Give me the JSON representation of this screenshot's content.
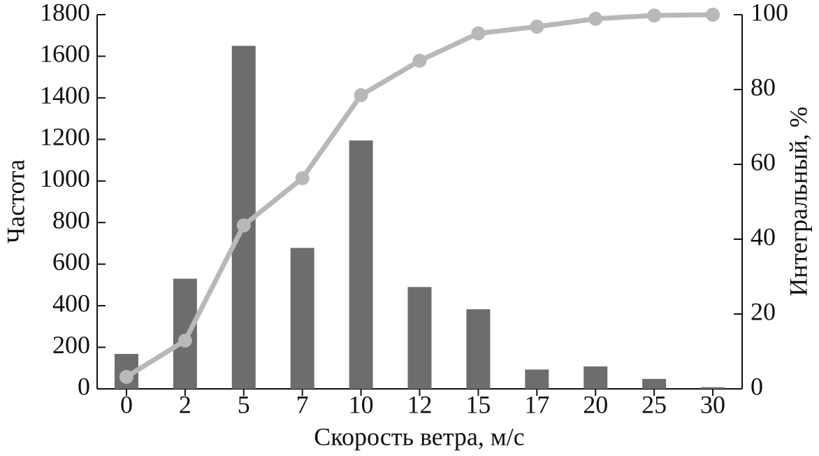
{
  "chart_data": {
    "type": "bar",
    "x_label": "Скорость ветра, м/с",
    "y_label": "Частота",
    "y2_label": "Интегральный, %",
    "categories": [
      "0",
      "2",
      "5",
      "7",
      "10",
      "12",
      "15",
      "17",
      "20",
      "25",
      "30"
    ],
    "series": [
      {
        "name": "Частота",
        "type": "bar",
        "axis": "y",
        "color": "#6d6d6e",
        "values": [
          168,
          530,
          1650,
          678,
          1195,
          490,
          383,
          93,
          108,
          48,
          8
        ]
      },
      {
        "name": "Интегральный",
        "type": "line",
        "axis": "y2",
        "color": "#b8b8b8",
        "values": [
          3.2,
          12.9,
          43.7,
          56.3,
          78.5,
          87.7,
          95,
          96.8,
          98.9,
          99.8,
          100
        ]
      }
    ],
    "ylim": [
      0,
      1800
    ],
    "yticks": [
      0,
      200,
      400,
      600,
      800,
      1000,
      1200,
      1400,
      1600,
      1800
    ],
    "y2lim": [
      0,
      100
    ],
    "y2ticks": [
      0,
      20,
      40,
      60,
      80,
      100
    ],
    "grid": false
  }
}
